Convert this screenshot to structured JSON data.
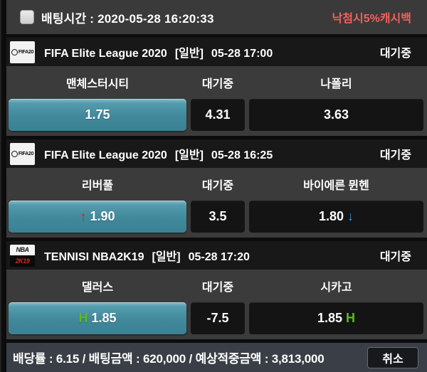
{
  "colors": {
    "selected_odd": "#3f8799",
    "promo_red": "#f2605c",
    "arrow_up_red": "#e02a26",
    "arrow_down_blue": "#2f9bea",
    "handicap_green": "#5abc1f"
  },
  "top_bar": {
    "bet_time_label": "배팅시간 : 2020-05-28 16:20:33",
    "promo": "낙첨시5%캐시백",
    "checkbox_checked": false
  },
  "matches": [
    {
      "icon": {
        "kind": "fifa20",
        "label": "FIFA20",
        "top": "",
        "bottom": ""
      },
      "league": "FIFA Elite League 2020",
      "category": "[일반]",
      "time": "05-28 17:00",
      "status": "대기중",
      "home": "맨체스터시티",
      "draw_label": "대기중",
      "away": "나폴리",
      "odds": [
        {
          "value": "1.75",
          "state": "sel",
          "prefix": "",
          "prefix_kind": "",
          "suffix": "",
          "suffix_kind": ""
        },
        {
          "value": "4.31",
          "state": "",
          "prefix": "",
          "prefix_kind": "",
          "suffix": "",
          "suffix_kind": ""
        },
        {
          "value": "3.63",
          "state": "",
          "prefix": "",
          "prefix_kind": "",
          "suffix": "",
          "suffix_kind": ""
        }
      ]
    },
    {
      "icon": {
        "kind": "fifa20",
        "label": "FIFA20",
        "top": "",
        "bottom": ""
      },
      "league": "FIFA Elite League 2020",
      "category": "[일반]",
      "time": "05-28 16:25",
      "status": "대기중",
      "home": "리버풀",
      "draw_label": "대기중",
      "away": "바이에른 뮌헨",
      "odds": [
        {
          "value": "1.90",
          "state": "sel",
          "prefix": "↑",
          "prefix_kind": "up",
          "suffix": "",
          "suffix_kind": ""
        },
        {
          "value": "3.5",
          "state": "",
          "prefix": "",
          "prefix_kind": "",
          "suffix": "",
          "suffix_kind": ""
        },
        {
          "value": "1.80",
          "state": "",
          "prefix": "",
          "prefix_kind": "",
          "suffix": "↓",
          "suffix_kind": "down"
        }
      ]
    },
    {
      "icon": {
        "kind": "nba2k19",
        "label": "",
        "top": "NBA",
        "bottom": "2K19"
      },
      "league": "TENNISI NBA2K19",
      "category": "[일반]",
      "time": "05-28 17:20",
      "status": "대기중",
      "home": "댈러스",
      "draw_label": "대기중",
      "away": "시카고",
      "odds": [
        {
          "value": "1.85",
          "state": "sel",
          "prefix": "H",
          "prefix_kind": "h",
          "suffix": "",
          "suffix_kind": ""
        },
        {
          "value": "-7.5",
          "state": "",
          "prefix": "",
          "prefix_kind": "",
          "suffix": "",
          "suffix_kind": ""
        },
        {
          "value": "1.85",
          "state": "",
          "prefix": "",
          "prefix_kind": "",
          "suffix": "H",
          "suffix_kind": "h"
        }
      ]
    }
  ],
  "footer": {
    "summary": "배당률 : 6.15 / 배팅금액 : 620,000 / 예상적중금액 : 3,813,000",
    "cancel_label": "취소"
  }
}
